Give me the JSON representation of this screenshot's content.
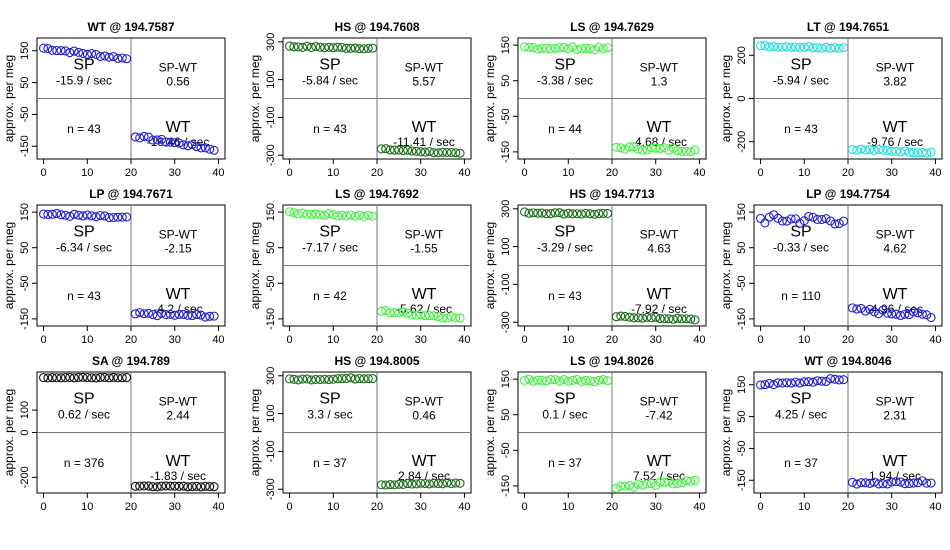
{
  "chart_data": {
    "type": "scatter",
    "ylabel": "approx. per meg",
    "x_ticks": [
      0,
      10,
      20,
      30,
      40
    ],
    "panels": [
      {
        "title": "WT @ 194.7587",
        "color": "#1f1fd0",
        "ylim": [
          -190,
          190
        ],
        "yticks": [
          150,
          50,
          -50,
          -150
        ],
        "y_tick_labels": [
          "150",
          "50",
          "-50",
          "-150"
        ],
        "n_label": "n = 43",
        "sp_label": "SP",
        "sp_rate": "-15.9 / sec",
        "spwt_label": "SP-WT",
        "spwt_value": "0.56",
        "wt_label": "WT",
        "wt_rate": "-16.46 / sec",
        "sp_start": 158,
        "sp_end": 125,
        "sp_jitter": 4,
        "wt_start": -118,
        "wt_end": -160,
        "wt_jitter": 4
      },
      {
        "title": "HS @ 194.7608",
        "color": "#1a6b1a",
        "ylim": [
          -320,
          320
        ],
        "yticks": [
          300,
          100,
          -100,
          -300
        ],
        "y_tick_labels": [
          "300",
          "100",
          "-100",
          "-300"
        ],
        "n_label": "n = 43",
        "sp_label": "SP",
        "sp_rate": "-5.84 / sec",
        "spwt_label": "SP-WT",
        "spwt_value": "5.57",
        "wt_label": "WT",
        "wt_rate": "-11.41 / sec",
        "sp_start": 275,
        "sp_end": 265,
        "sp_jitter": 4,
        "wt_start": -268,
        "wt_end": -292,
        "wt_jitter": 4
      },
      {
        "title": "LS @ 194.7629",
        "color": "#44ee44",
        "ylim": [
          -170,
          170
        ],
        "yticks": [
          150,
          50,
          -50,
          -150
        ],
        "y_tick_labels": [
          "150",
          "50",
          "-50",
          "-150"
        ],
        "n_label": "n = 44",
        "sp_label": "SP",
        "sp_rate": "-3.38 / sec",
        "spwt_label": "SP-WT",
        "spwt_value": "1.3",
        "wt_label": "WT",
        "wt_rate": "-4.68 / sec",
        "sp_start": 143,
        "sp_end": 140,
        "sp_jitter": 4,
        "wt_start": -138,
        "wt_end": -145,
        "wt_jitter": 5
      },
      {
        "title": "LT @ 194.7651",
        "color": "#22dddd",
        "ylim": [
          -280,
          280
        ],
        "yticks": [
          200,
          0,
          -200
        ],
        "y_tick_labels": [
          "200",
          "0",
          "-200"
        ],
        "n_label": "n = 43",
        "sp_label": "SP",
        "sp_rate": "-5.94 / sec",
        "spwt_label": "SP-WT",
        "spwt_value": "3.82",
        "wt_label": "WT",
        "wt_rate": "-9.76 / sec",
        "sp_start": 242,
        "sp_end": 235,
        "sp_jitter": 4,
        "wt_start": -235,
        "wt_end": -250,
        "wt_jitter": 4
      },
      {
        "title": "LP @ 194.7671",
        "color": "#1f1fd0",
        "ylim": [
          -170,
          170
        ],
        "yticks": [
          150,
          50,
          -50,
          -150
        ],
        "y_tick_labels": [
          "150",
          "50",
          "-50",
          "-150"
        ],
        "n_label": "n = 43",
        "sp_label": "SP",
        "sp_rate": "-6.34 / sec",
        "spwt_label": "SP-WT",
        "spwt_value": "-2.15",
        "wt_label": "WT",
        "wt_rate": "-4.2 / sec",
        "sp_start": 145,
        "sp_end": 133,
        "sp_jitter": 4,
        "wt_start": -136,
        "wt_end": -142,
        "wt_jitter": 4
      },
      {
        "title": "LS @ 194.7692",
        "color": "#44ee44",
        "ylim": [
          -170,
          170
        ],
        "yticks": [
          150,
          50,
          -50,
          -150
        ],
        "y_tick_labels": [
          "150",
          "50",
          "-50",
          "-150"
        ],
        "n_label": "n = 42",
        "sp_label": "SP",
        "sp_rate": "-7.17 / sec",
        "spwt_label": "SP-WT",
        "spwt_value": "-1.55",
        "wt_label": "WT",
        "wt_rate": "-5.62 / sec",
        "sp_start": 148,
        "sp_end": 138,
        "sp_jitter": 3,
        "wt_start": -128,
        "wt_end": -148,
        "wt_jitter": 4
      },
      {
        "title": "HS @ 194.7713",
        "color": "#1a6b1a",
        "ylim": [
          -320,
          320
        ],
        "yticks": [
          300,
          100,
          -100,
          -300
        ],
        "y_tick_labels": [
          "300",
          "100",
          "-100",
          "-300"
        ],
        "n_label": "n = 43",
        "sp_label": "SP",
        "sp_rate": "-3.29 / sec",
        "spwt_label": "SP-WT",
        "spwt_value": "4.63",
        "wt_label": "WT",
        "wt_rate": "-7.92 / sec",
        "sp_start": 280,
        "sp_end": 272,
        "sp_jitter": 4,
        "wt_start": -270,
        "wt_end": -286,
        "wt_jitter": 4
      },
      {
        "title": "LP @ 194.7754",
        "color": "#1f1fd0",
        "ylim": [
          -170,
          170
        ],
        "yticks": [
          150,
          50,
          -50,
          -150
        ],
        "y_tick_labels": [
          "150",
          "50",
          "-50",
          "-150"
        ],
        "n_label": "n = 110",
        "sp_label": "SP",
        "sp_rate": "-0.33 / sec",
        "spwt_label": "SP-WT",
        "spwt_value": "4.62",
        "wt_label": "WT",
        "wt_rate": "-4.96 / sec",
        "sp_start": 130,
        "sp_end": 128,
        "sp_jitter": 14,
        "wt_start": -125,
        "wt_end": -140,
        "wt_jitter": 7
      },
      {
        "title": "SA @ 194.789",
        "color": "#111111",
        "ylim": [
          -270,
          270
        ],
        "yticks": [
          100,
          0,
          -200
        ],
        "y_tick_labels": [
          "100",
          "0",
          "-200"
        ],
        "n_label": "n = 376",
        "sp_label": "SP",
        "sp_rate": "0.62 / sec",
        "spwt_label": "SP-WT",
        "spwt_value": "2.44",
        "wt_label": "WT",
        "wt_rate": "-1.83 / sec",
        "sp_start": 245,
        "sp_end": 246,
        "sp_jitter": 2,
        "wt_start": -240,
        "wt_end": -241,
        "wt_jitter": 2
      },
      {
        "title": "HS @ 194.8005",
        "color": "#1a6b1a",
        "ylim": [
          -320,
          320
        ],
        "yticks": [
          300,
          100,
          -100,
          -300
        ],
        "y_tick_labels": [
          "300",
          "100",
          "-100",
          "-300"
        ],
        "n_label": "n = 37",
        "sp_label": "SP",
        "sp_rate": "3.3 / sec",
        "spwt_label": "SP-WT",
        "spwt_value": "0.46",
        "wt_label": "WT",
        "wt_rate": "2.84 / sec",
        "sp_start": 280,
        "sp_end": 288,
        "sp_jitter": 4,
        "wt_start": -275,
        "wt_end": -268,
        "wt_jitter": 4
      },
      {
        "title": "LS @ 194.8026",
        "color": "#44ee44",
        "ylim": [
          -170,
          170
        ],
        "yticks": [
          150,
          50,
          -50,
          -150
        ],
        "y_tick_labels": [
          "150",
          "50",
          "-50",
          "-150"
        ],
        "n_label": "n = 37",
        "sp_label": "SP",
        "sp_rate": "0.1 / sec",
        "spwt_label": "SP-WT",
        "spwt_value": "-7.42",
        "wt_label": "WT",
        "wt_rate": "7.52 / sec",
        "sp_start": 147,
        "sp_end": 147,
        "sp_jitter": 4,
        "wt_start": -152,
        "wt_end": -138,
        "wt_jitter": 5
      },
      {
        "title": "WT @ 194.8046",
        "color": "#1f1fd0",
        "ylim": [
          -190,
          190
        ],
        "yticks": [
          150,
          50,
          -50,
          -150
        ],
        "y_tick_labels": [
          "150",
          "50",
          "-50",
          "-150"
        ],
        "n_label": "n = 37",
        "sp_label": "SP",
        "sp_rate": "4.25 / sec",
        "spwt_label": "SP-WT",
        "spwt_value": "2.31",
        "wt_label": "WT",
        "wt_rate": "1.94 / sec",
        "sp_start": 150,
        "sp_end": 168,
        "sp_jitter": 4,
        "wt_start": -160,
        "wt_end": -155,
        "wt_jitter": 4
      }
    ]
  }
}
